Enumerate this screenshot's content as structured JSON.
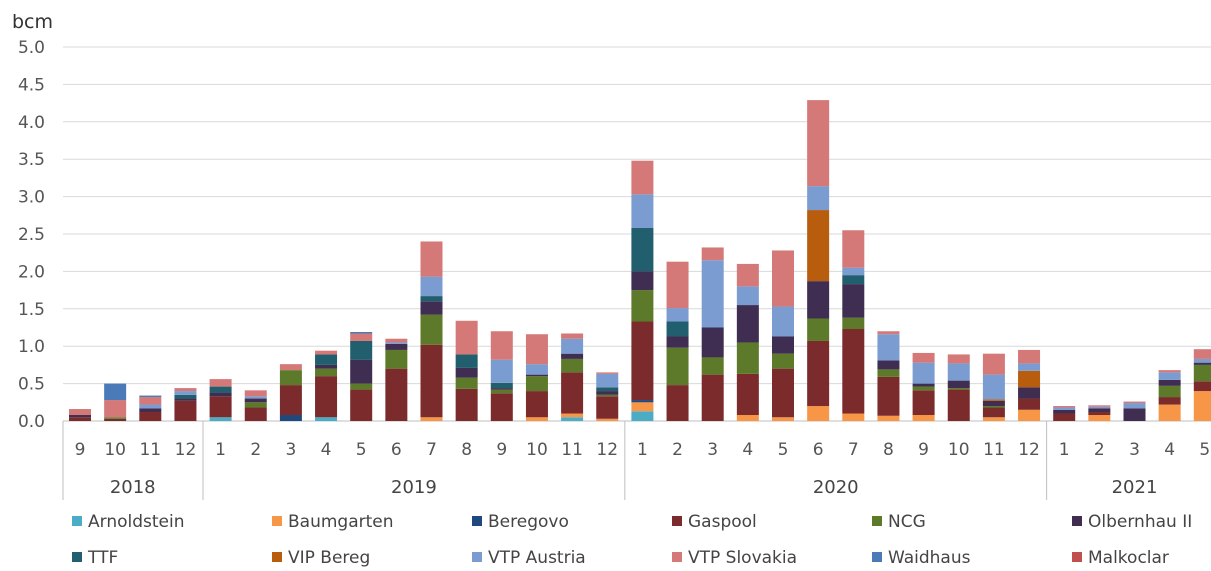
{
  "chart_data": {
    "type": "bar",
    "stacked": true,
    "ylabel": "bcm",
    "ylim": [
      0,
      5
    ],
    "yticks": [
      "0.0",
      "0.5",
      "1.0",
      "1.5",
      "2.0",
      "2.5",
      "3.0",
      "3.5",
      "4.0",
      "4.5",
      "5.0"
    ],
    "grid": true,
    "legend_position": "bottom",
    "months": [
      "9",
      "10",
      "11",
      "12",
      "1",
      "2",
      "3",
      "4",
      "5",
      "6",
      "7",
      "8",
      "9",
      "10",
      "11",
      "12",
      "1",
      "2",
      "3",
      "4",
      "5",
      "6",
      "7",
      "8",
      "9",
      "10",
      "11",
      "12",
      "1",
      "2",
      "3",
      "4",
      "5"
    ],
    "year_groups": [
      {
        "label": "2018",
        "count": 4
      },
      {
        "label": "2019",
        "count": 12
      },
      {
        "label": "2020",
        "count": 12
      },
      {
        "label": "2021",
        "count": 5
      }
    ],
    "series": [
      {
        "name": "Arnoldstein",
        "color": "#4bacc6",
        "values": [
          0,
          0,
          0,
          0,
          0.05,
          0,
          0,
          0.05,
          0,
          0,
          0,
          0,
          0,
          0,
          0.05,
          0,
          0.13,
          0,
          0,
          0,
          0,
          0,
          0,
          0,
          0,
          0,
          0,
          0,
          0,
          0,
          0,
          0,
          0
        ]
      },
      {
        "name": "Baumgarten",
        "color": "#f79646",
        "values": [
          0,
          0,
          0,
          0,
          0,
          0,
          0,
          0,
          0,
          0,
          0.05,
          0,
          0,
          0.05,
          0.05,
          0.03,
          0.12,
          0,
          0,
          0.08,
          0.05,
          0.2,
          0.1,
          0.07,
          0.08,
          0,
          0.05,
          0.15,
          0,
          0.08,
          0,
          0.22,
          0.4
        ]
      },
      {
        "name": "Beregovo",
        "color": "#1f497d",
        "values": [
          0,
          0,
          0,
          0,
          0,
          0,
          0.08,
          0,
          0,
          0,
          0,
          0,
          0,
          0,
          0,
          0,
          0.03,
          0,
          0,
          0,
          0,
          0,
          0,
          0,
          0,
          0,
          0,
          0,
          0,
          0,
          0,
          0,
          0
        ]
      },
      {
        "name": "Gaspool",
        "color": "#7b2b2b",
        "values": [
          0.05,
          0.03,
          0.12,
          0.27,
          0.28,
          0.18,
          0.4,
          0.55,
          0.42,
          0.7,
          0.97,
          0.43,
          0.37,
          0.35,
          0.55,
          0.3,
          1.05,
          0.48,
          0.62,
          0.55,
          0.65,
          0.87,
          1.13,
          0.52,
          0.33,
          0.42,
          0.13,
          0.15,
          0.1,
          0.04,
          0,
          0.1,
          0.13
        ]
      },
      {
        "name": "NCG",
        "color": "#5d7a2a",
        "values": [
          0,
          0.02,
          0,
          0,
          0,
          0.07,
          0.2,
          0.1,
          0.08,
          0.25,
          0.4,
          0.15,
          0.05,
          0.2,
          0.18,
          0.02,
          0.42,
          0.5,
          0.23,
          0.42,
          0.2,
          0.3,
          0.15,
          0.1,
          0.05,
          0.02,
          0.02,
          0,
          0,
          0,
          0,
          0.15,
          0.22
        ]
      },
      {
        "name": "Olbernhau II",
        "color": "#3f2d52",
        "values": [
          0.03,
          0,
          0.05,
          0.03,
          0.05,
          0.05,
          0,
          0.05,
          0.32,
          0.08,
          0.18,
          0.13,
          0.02,
          0.02,
          0.07,
          0.05,
          0.25,
          0.15,
          0.4,
          0.5,
          0.23,
          0.5,
          0.45,
          0.12,
          0.04,
          0.1,
          0.07,
          0.15,
          0.05,
          0.05,
          0.17,
          0.08,
          0.03
        ]
      },
      {
        "name": "TTF",
        "color": "#215e6e",
        "values": [
          0,
          0,
          0,
          0.05,
          0.08,
          0,
          0,
          0.14,
          0.25,
          0,
          0.07,
          0.18,
          0.07,
          0,
          0,
          0.05,
          0.58,
          0.2,
          0,
          0,
          0,
          0,
          0.12,
          0,
          0,
          0,
          0,
          0,
          0,
          0,
          0,
          0,
          0
        ]
      },
      {
        "name": "VIP Bereg",
        "color": "#b85c0d",
        "values": [
          0,
          0,
          0,
          0,
          0,
          0,
          0,
          0,
          0,
          0,
          0,
          0,
          0,
          0,
          0,
          0,
          0,
          0,
          0,
          0,
          0,
          0.95,
          0,
          0,
          0,
          0,
          0.02,
          0.22,
          0,
          0,
          0,
          0,
          0
        ]
      },
      {
        "name": "VTP Austria",
        "color": "#7a9cd0",
        "values": [
          0,
          0,
          0.05,
          0.05,
          0,
          0.03,
          0,
          0,
          0,
          0.02,
          0.26,
          0,
          0.31,
          0.14,
          0.2,
          0.18,
          0.45,
          0.18,
          0.9,
          0.25,
          0.4,
          0.32,
          0.1,
          0.35,
          0.28,
          0.23,
          0.33,
          0.1,
          0.03,
          0.02,
          0.07,
          0.1,
          0.05
        ]
      },
      {
        "name": "VTP Slovakia",
        "color": "#d47878",
        "values": [
          0.08,
          0.23,
          0.1,
          0.04,
          0.1,
          0.08,
          0.08,
          0.05,
          0.1,
          0.05,
          0.47,
          0.45,
          0.38,
          0.4,
          0.07,
          0.02,
          0.45,
          0.62,
          0.17,
          0.3,
          0.75,
          1.15,
          0.5,
          0.04,
          0.13,
          0.12,
          0.28,
          0.18,
          0.02,
          0.02,
          0.02,
          0.03,
          0.13
        ]
      },
      {
        "name": "Waidhaus",
        "color": "#4a7ab8",
        "values": [
          0,
          0.22,
          0.02,
          0,
          0,
          0,
          0,
          0,
          0.02,
          0,
          0,
          0,
          0,
          0,
          0,
          0,
          0,
          0,
          0,
          0,
          0,
          0,
          0,
          0,
          0,
          0,
          0,
          0,
          0,
          0,
          0,
          0,
          0
        ]
      },
      {
        "name": "Malkoclar",
        "color": "#c0504d",
        "values": [
          0,
          0,
          0,
          0,
          0,
          0,
          0,
          0,
          0,
          0,
          0,
          0,
          0,
          0,
          0,
          0,
          0,
          0,
          0,
          0,
          0,
          0,
          0,
          0,
          0,
          0,
          0,
          0,
          0,
          0,
          0,
          0,
          0
        ]
      }
    ]
  }
}
